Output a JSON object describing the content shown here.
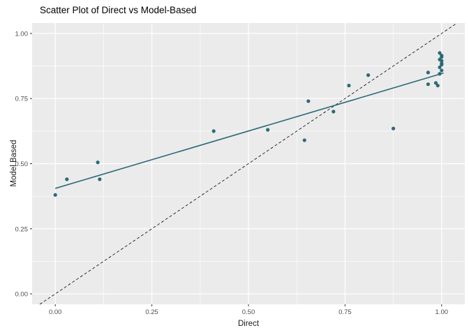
{
  "title": "Scatter Plot of Direct vs Model-Based",
  "chart_data": {
    "type": "scatter",
    "title": "Scatter Plot of Direct vs Model-Based",
    "xlabel": "Direct",
    "ylabel": "Model Based",
    "xlim": [
      -0.06,
      1.06
    ],
    "ylim": [
      -0.04,
      1.04
    ],
    "xticks": [
      0.0,
      0.25,
      0.5,
      0.75,
      1.0
    ],
    "yticks": [
      0.0,
      0.25,
      0.5,
      0.75,
      1.0
    ],
    "xtick_labels": [
      "0.00",
      "0.25",
      "0.50",
      "0.75",
      "1.00"
    ],
    "ytick_labels": [
      "0.00",
      "0.25",
      "0.50",
      "0.75",
      "1.00"
    ],
    "minor_xticks": [
      0.125,
      0.375,
      0.625,
      0.875
    ],
    "minor_yticks": [
      0.125,
      0.375,
      0.625,
      0.875
    ],
    "grid": true,
    "legend": "none",
    "panel_bg": "#EBEBEB",
    "grid_color": "#FFFFFF",
    "point_color": "#2B6A78",
    "line_color": "#2B6A78",
    "identity_color": "#000000",
    "tick_label_color": "#4D4D4D",
    "points": [
      [
        0.0,
        0.38
      ],
      [
        0.03,
        0.44
      ],
      [
        0.11,
        0.505
      ],
      [
        0.115,
        0.44
      ],
      [
        0.41,
        0.625
      ],
      [
        0.55,
        0.63
      ],
      [
        0.645,
        0.59
      ],
      [
        0.655,
        0.74
      ],
      [
        0.72,
        0.7
      ],
      [
        0.76,
        0.8
      ],
      [
        0.81,
        0.84
      ],
      [
        0.875,
        0.635
      ],
      [
        0.965,
        0.85
      ],
      [
        0.965,
        0.805
      ],
      [
        0.985,
        0.81
      ],
      [
        0.99,
        0.8
      ],
      [
        0.995,
        0.925
      ],
      [
        1.0,
        0.91
      ],
      [
        0.995,
        0.9
      ],
      [
        1.0,
        0.885
      ],
      [
        0.995,
        0.87
      ],
      [
        1.0,
        0.858
      ],
      [
        0.995,
        0.845
      ],
      [
        1.0,
        0.88
      ],
      [
        1.0,
        0.895
      ],
      [
        1.0,
        0.915
      ]
    ],
    "regression_line": {
      "x": [
        0.0,
        1.005
      ],
      "y": [
        0.405,
        0.848
      ]
    },
    "identity_line": {
      "style": "dashed",
      "x": [
        -0.04,
        1.04
      ],
      "y": [
        -0.04,
        1.04
      ]
    }
  }
}
